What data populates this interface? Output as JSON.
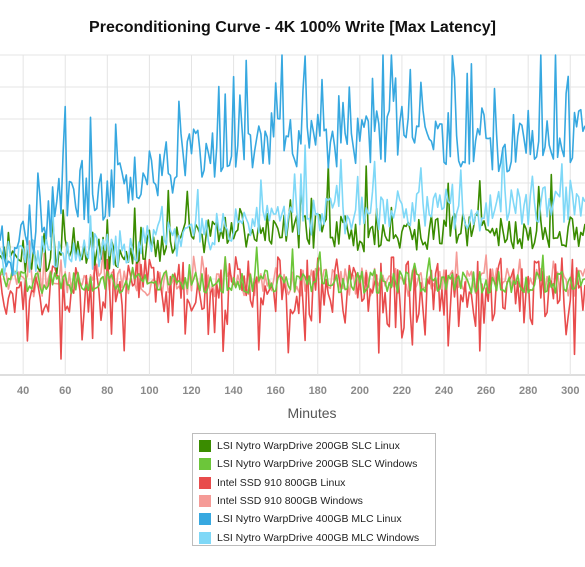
{
  "chart_data": {
    "type": "line",
    "title": "Preconditioning Curve - 4K 100% Write [Max Latency]",
    "xlabel": "Minutes",
    "ylabel": "",
    "xlim": [
      29,
      307
    ],
    "ylim": [
      0,
      10
    ],
    "x_ticks": [
      40,
      60,
      80,
      100,
      120,
      140,
      160,
      180,
      200,
      220,
      240,
      260,
      280,
      300
    ],
    "grid": true,
    "legend_position": "bottom",
    "series": [
      {
        "name": "LSI Nytro WarpDrive 200GB SLC Linux",
        "color": "#3a8c00",
        "x": [
          30,
          40,
          60,
          80,
          100,
          120,
          140,
          160,
          180,
          200,
          220,
          240,
          260,
          280,
          300,
          306
        ],
        "values": [
          3.6,
          3.7,
          3.7,
          3.8,
          4.0,
          4.3,
          4.5,
          4.5,
          4.5,
          4.4,
          4.4,
          4.5,
          4.5,
          4.4,
          4.4,
          4.5
        ]
      },
      {
        "name": "LSI Nytro WarpDrive 200GB SLC Windows",
        "color": "#6cc63a",
        "x": [
          30,
          40,
          60,
          80,
          100,
          120,
          140,
          160,
          180,
          200,
          220,
          240,
          260,
          280,
          300,
          306
        ],
        "values": [
          3.0,
          2.9,
          2.9,
          2.9,
          2.9,
          2.9,
          2.9,
          2.9,
          2.9,
          2.9,
          2.9,
          2.9,
          2.9,
          2.9,
          2.9,
          2.9
        ]
      },
      {
        "name": "Intel SSD 910 800GB Linux",
        "color": "#e84c4c",
        "x": [
          30,
          40,
          60,
          80,
          100,
          120,
          140,
          160,
          180,
          200,
          220,
          240,
          260,
          280,
          300,
          306
        ],
        "values": [
          2.8,
          2.8,
          2.8,
          2.8,
          2.8,
          2.8,
          2.8,
          2.8,
          2.8,
          2.8,
          2.8,
          2.8,
          2.8,
          2.8,
          2.8,
          2.8
        ]
      },
      {
        "name": "Intel SSD 910 800GB Windows",
        "color": "#f59b97",
        "x": [
          30,
          40,
          60,
          80,
          100,
          120,
          140,
          160,
          180,
          200,
          220,
          240,
          260,
          280,
          300,
          306
        ],
        "values": [
          2.9,
          2.9,
          2.9,
          2.9,
          2.9,
          2.9,
          2.9,
          2.9,
          2.9,
          2.9,
          2.9,
          2.9,
          2.9,
          2.9,
          2.9,
          2.9
        ]
      },
      {
        "name": "LSI Nytro WarpDrive 400GB MLC Linux",
        "color": "#37a8e0",
        "x": [
          30,
          40,
          60,
          80,
          100,
          120,
          140,
          160,
          180,
          200,
          220,
          240,
          260,
          280,
          300,
          306
        ],
        "values": [
          3.7,
          4.3,
          5.5,
          5.7,
          6.3,
          6.8,
          7.2,
          7.5,
          7.3,
          7.4,
          7.6,
          7.3,
          7.3,
          7.1,
          7.4,
          7.6
        ]
      },
      {
        "name": "LSI Nytro WarpDrive 400GB MLC Windows",
        "color": "#7fd8f7",
        "x": [
          30,
          40,
          60,
          80,
          100,
          120,
          140,
          160,
          180,
          200,
          220,
          240,
          260,
          280,
          300,
          306
        ],
        "values": [
          3.6,
          3.7,
          3.8,
          3.9,
          4.1,
          4.3,
          4.7,
          4.9,
          4.9,
          5.0,
          5.2,
          5.1,
          5.1,
          5.3,
          5.3,
          5.4
        ]
      }
    ]
  }
}
